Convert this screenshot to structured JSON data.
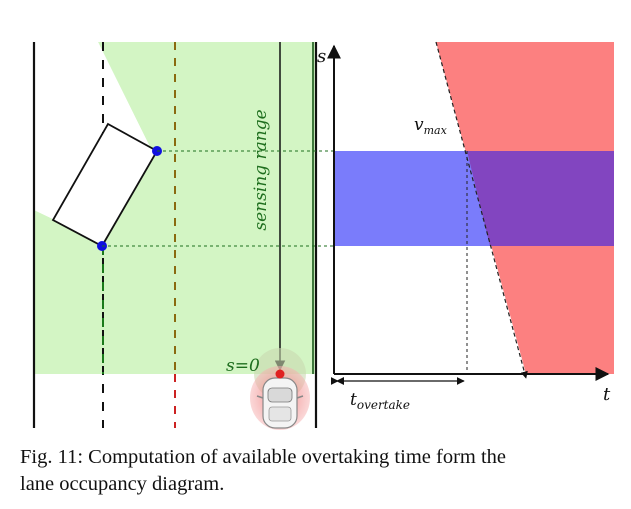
{
  "figure": {
    "left_panel": {
      "sensing_range_label": "sensing range",
      "s_zero_label": "s=0"
    },
    "right_panel": {
      "s_axis_label": "s",
      "t_axis_label": "t",
      "vmax_main": "v",
      "vmax_sub": "max",
      "t_overtake_main": "t",
      "t_overtake_sub": "overtake"
    },
    "colors": {
      "sensing_area": "#d3f5c4",
      "lane_occupancy_band": "#7a7cfb",
      "forbidden_region": "#fc8080",
      "overlap_region": "#8245c0",
      "ego_marker": "#e02020",
      "corner_marker": "#1010e0"
    }
  },
  "caption": {
    "line1": "Fig. 11: Computation of available overtaking time form the",
    "line2": "lane occupancy diagram."
  }
}
